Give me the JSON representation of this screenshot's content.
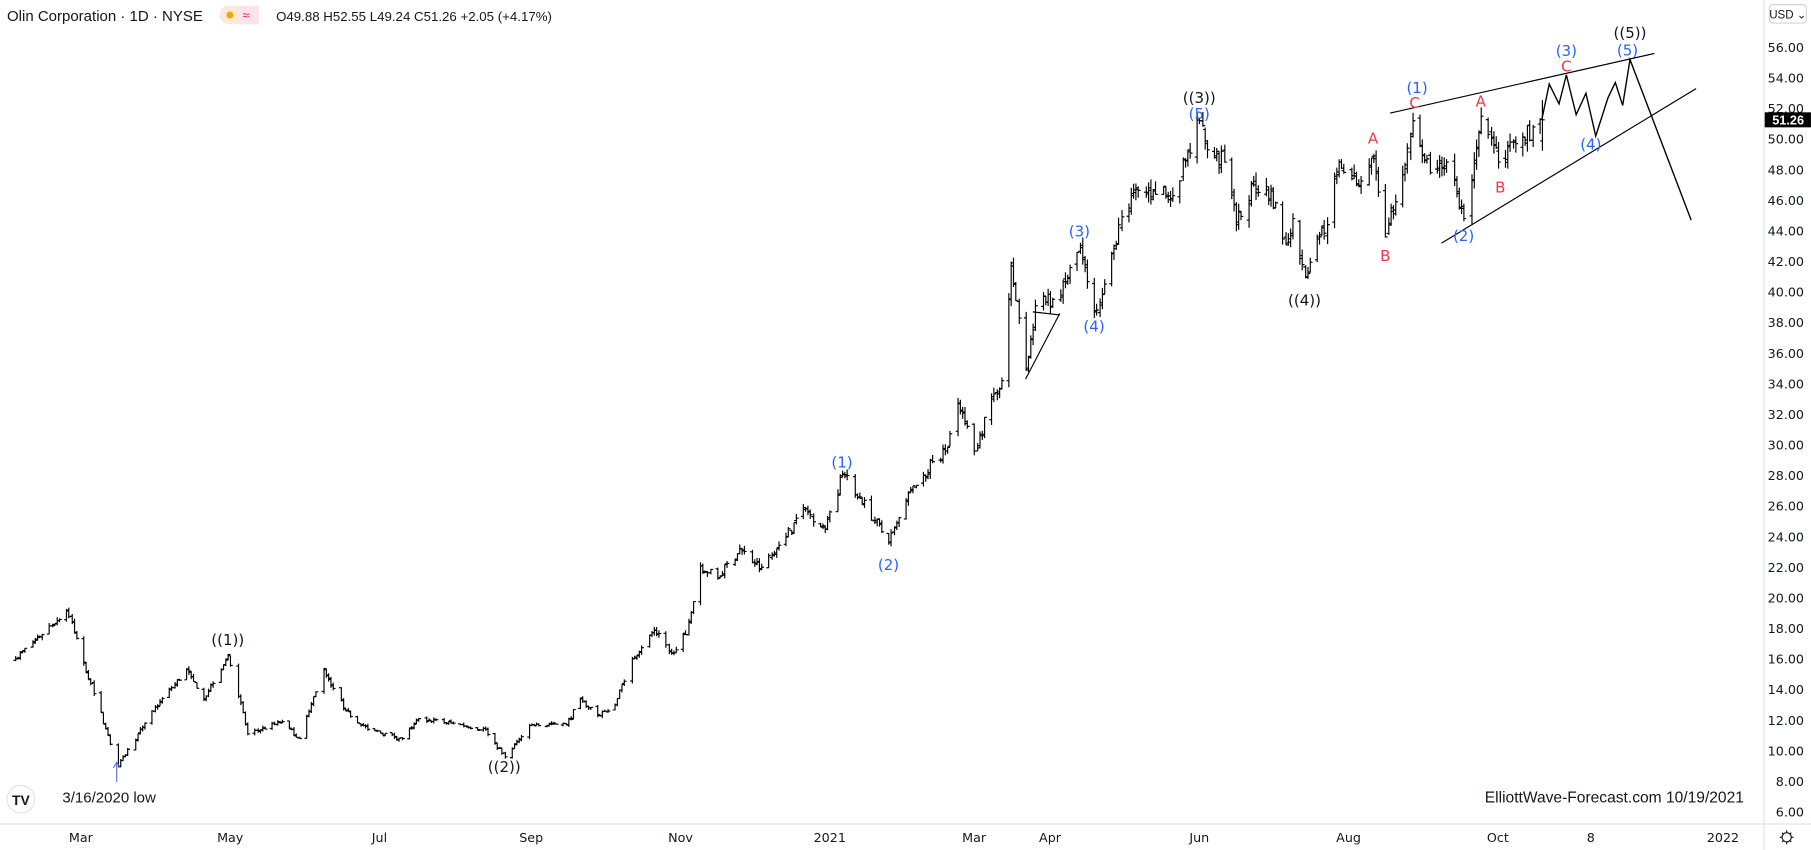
{
  "header": {
    "symbol_title": "Olin Corporation · 1D · NYSE",
    "ohlc": "O49.88 H52.55 L49.24 C51.26 +2.05 (+4.17%)",
    "market_icon": "sun-icon",
    "data_icon": "wave-icon"
  },
  "currency_button": "USD ⌄",
  "last_price_label": "51.26",
  "colors": {
    "bars": "#000000",
    "wave_blue": "#2962ff",
    "wave_red": "#f23645",
    "last_price_bg": "#000000"
  },
  "notes": {
    "low_label": "3/16/2020 low",
    "watermark": "ElliottWave-Forecast.com   10/19/2021"
  },
  "chart_data": {
    "type": "ohlc",
    "title": "Olin Corporation · 1D · NYSE",
    "ylim": [
      6,
      56
    ],
    "y_ticks": [
      "56.00",
      "54.00",
      "52.00",
      "50.00",
      "48.00",
      "46.00",
      "44.00",
      "42.00",
      "40.00",
      "38.00",
      "36.00",
      "34.00",
      "32.00",
      "30.00",
      "28.00",
      "26.00",
      "24.00",
      "22.00",
      "20.00",
      "18.00",
      "16.00",
      "14.00",
      "12.00",
      "10.00",
      "8.00",
      "6.00"
    ],
    "x_ticks": [
      {
        "label": "Mar",
        "date": "2020-03-01"
      },
      {
        "label": "May",
        "date": "2020-05-01"
      },
      {
        "label": "Jul",
        "date": "2020-07-01"
      },
      {
        "label": "Sep",
        "date": "2020-09-01"
      },
      {
        "label": "Nov",
        "date": "2020-11-01"
      },
      {
        "label": "2021",
        "date": "2021-01-01"
      },
      {
        "label": "Mar",
        "date": "2021-03-01"
      },
      {
        "label": "Apr",
        "date": "2021-04-01"
      },
      {
        "label": "Jun",
        "date": "2021-06-01"
      },
      {
        "label": "Aug",
        "date": "2021-08-01"
      },
      {
        "label": "Oct",
        "date": "2021-10-01"
      },
      {
        "label": "8",
        "date": "2021-11-08"
      },
      {
        "label": "2022",
        "date": "2022-01-01"
      }
    ],
    "price_path": [
      [
        "2020-02-03",
        16.0
      ],
      [
        "2020-02-24",
        19.2
      ],
      [
        "2020-03-16",
        9.0
      ],
      [
        "2020-03-30",
        12.6
      ],
      [
        "2020-04-13",
        15.3
      ],
      [
        "2020-04-20",
        13.4
      ],
      [
        "2020-04-30",
        16.3
      ],
      [
        "2020-05-08",
        11.1
      ],
      [
        "2020-05-22",
        11.9
      ],
      [
        "2020-05-29",
        10.8
      ],
      [
        "2020-06-08",
        15.3
      ],
      [
        "2020-06-17",
        12.6
      ],
      [
        "2020-06-26",
        11.4
      ],
      [
        "2020-07-10",
        10.8
      ],
      [
        "2020-07-17",
        12.1
      ],
      [
        "2020-08-03",
        11.7
      ],
      [
        "2020-08-13",
        11.4
      ],
      [
        "2020-08-21",
        9.6
      ],
      [
        "2020-09-01",
        11.7
      ],
      [
        "2020-09-15",
        11.7
      ],
      [
        "2020-09-21",
        13.4
      ],
      [
        "2020-09-28",
        12.3
      ],
      [
        "2020-10-05",
        13.0
      ],
      [
        "2020-10-12",
        16.0
      ],
      [
        "2020-10-21",
        17.9
      ],
      [
        "2020-10-28",
        16.4
      ],
      [
        "2020-11-03",
        17.6
      ],
      [
        "2020-11-09",
        22.1
      ],
      [
        "2020-11-16",
        21.3
      ],
      [
        "2020-11-25",
        23.2
      ],
      [
        "2020-12-04",
        22.0
      ],
      [
        "2020-12-14",
        24.0
      ],
      [
        "2020-12-21",
        25.9
      ],
      [
        "2020-12-30",
        24.5
      ],
      [
        "2021-01-06",
        28.1
      ],
      [
        "2021-01-13",
        26.6
      ],
      [
        "2021-01-25",
        23.6
      ],
      [
        "2021-02-03",
        27.0
      ],
      [
        "2021-02-12",
        28.9
      ],
      [
        "2021-02-17",
        29.6
      ],
      [
        "2021-02-22",
        32.7
      ],
      [
        "2021-03-01",
        29.6
      ],
      [
        "2021-03-08",
        33.0
      ],
      [
        "2021-03-12",
        34.2
      ],
      [
        "2021-03-16",
        41.7
      ],
      [
        "2021-03-22",
        34.9
      ],
      [
        "2021-03-26",
        39.1
      ],
      [
        "2021-04-05",
        39.8
      ],
      [
        "2021-04-13",
        42.9
      ],
      [
        "2021-04-19",
        38.7
      ],
      [
        "2021-04-26",
        42.5
      ],
      [
        "2021-05-04",
        46.3
      ],
      [
        "2021-05-13",
        46.6
      ],
      [
        "2021-05-21",
        46.3
      ],
      [
        "2021-06-01",
        51.2
      ],
      [
        "2021-06-04",
        49.3
      ],
      [
        "2021-06-11",
        48.5
      ],
      [
        "2021-06-16",
        44.4
      ],
      [
        "2021-06-23",
        47.0
      ],
      [
        "2021-06-30",
        46.6
      ],
      [
        "2021-07-06",
        43.2
      ],
      [
        "2021-07-09",
        44.8
      ],
      [
        "2021-07-14",
        41.0
      ],
      [
        "2021-07-19",
        43.6
      ],
      [
        "2021-07-23",
        44.4
      ],
      [
        "2021-07-28",
        48.5
      ],
      [
        "2021-08-04",
        47.0
      ],
      [
        "2021-08-11",
        48.9
      ],
      [
        "2021-08-16",
        43.6
      ],
      [
        "2021-08-20",
        45.9
      ],
      [
        "2021-08-27",
        51.2
      ],
      [
        "2021-09-03",
        47.8
      ],
      [
        "2021-09-10",
        48.5
      ],
      [
        "2021-09-17",
        44.8
      ],
      [
        "2021-09-24",
        51.5
      ],
      [
        "2021-10-01",
        48.5
      ],
      [
        "2021-10-08",
        49.7
      ],
      [
        "2021-10-19",
        51.26
      ]
    ],
    "last_bar": {
      "date": "2021-10-19",
      "open": 49.88,
      "high": 52.55,
      "low": 49.24,
      "close": 51.26,
      "change": 2.05,
      "change_pct": 4.17
    },
    "projection": [
      [
        "2021-10-19",
        51.3
      ],
      [
        "2021-10-22",
        53.6
      ],
      [
        "2021-10-26",
        52.3
      ],
      [
        "2021-10-29",
        54.2
      ],
      [
        "2021-11-02",
        51.6
      ],
      [
        "2021-11-06",
        53.0
      ],
      [
        "2021-11-10",
        50.2
      ],
      [
        "2021-11-15",
        52.7
      ],
      [
        "2021-11-18",
        53.7
      ],
      [
        "2021-11-21",
        52.2
      ],
      [
        "2021-11-24",
        55.2
      ],
      [
        "2021-12-19",
        44.7
      ]
    ],
    "trendlines": [
      {
        "name": "wedge-upper",
        "from": [
          "2021-08-18",
          51.7
        ],
        "to": [
          "2021-12-04",
          55.6
        ]
      },
      {
        "name": "wedge-lower",
        "from": [
          "2021-09-08",
          43.2
        ],
        "to": [
          "2021-12-21",
          53.3
        ]
      },
      {
        "name": "triangle-lower",
        "from": [
          "2021-03-22",
          34.3
        ],
        "to": [
          "2021-04-05",
          38.6
        ]
      },
      {
        "name": "triangle-upper",
        "from": [
          "2021-03-25",
          38.7
        ],
        "to": [
          "2021-04-05",
          38.5
        ]
      }
    ],
    "annotations": [
      {
        "text": "((1))",
        "date": "2020-04-30",
        "price": 17.3,
        "color": "black"
      },
      {
        "text": "((2))",
        "date": "2020-08-21",
        "price": 9.0,
        "color": "black"
      },
      {
        "text": "(1)",
        "date": "2021-01-06",
        "price": 28.9,
        "color": "blue"
      },
      {
        "text": "(2)",
        "date": "2021-01-25",
        "price": 22.2,
        "color": "blue"
      },
      {
        "text": "(3)",
        "date": "2021-04-13",
        "price": 44.0,
        "color": "blue"
      },
      {
        "text": "(4)",
        "date": "2021-04-19",
        "price": 37.8,
        "color": "blue"
      },
      {
        "text": "((3))",
        "date": "2021-06-01",
        "price": 52.75,
        "color": "black"
      },
      {
        "text": "(5)",
        "date": "2021-06-01",
        "price": 51.7,
        "color": "blue"
      },
      {
        "text": "((4))",
        "date": "2021-07-14",
        "price": 39.5,
        "color": "black"
      },
      {
        "text": "A",
        "date": "2021-08-11",
        "price": 50.1,
        "color": "red"
      },
      {
        "text": "B",
        "date": "2021-08-16",
        "price": 42.4,
        "color": "red"
      },
      {
        "text": "(1)",
        "date": "2021-08-29",
        "price": 53.4,
        "color": "blue"
      },
      {
        "text": "C",
        "date": "2021-08-28",
        "price": 52.4,
        "color": "red"
      },
      {
        "text": "(2)",
        "date": "2021-09-17",
        "price": 43.7,
        "color": "blue"
      },
      {
        "text": "A",
        "date": "2021-09-24",
        "price": 52.5,
        "color": "red"
      },
      {
        "text": "B",
        "date": "2021-10-02",
        "price": 46.9,
        "color": "red"
      },
      {
        "text": "(3)",
        "date": "2021-10-29",
        "price": 55.8,
        "color": "blue"
      },
      {
        "text": "C",
        "date": "2021-10-29",
        "price": 54.8,
        "color": "red"
      },
      {
        "text": "(4)",
        "date": "2021-11-08",
        "price": 49.7,
        "color": "blue"
      },
      {
        "text": "((5))",
        "date": "2021-11-24",
        "price": 57.0,
        "color": "black"
      },
      {
        "text": "(5)",
        "date": "2021-11-23",
        "price": 55.85,
        "color": "blue"
      }
    ]
  }
}
